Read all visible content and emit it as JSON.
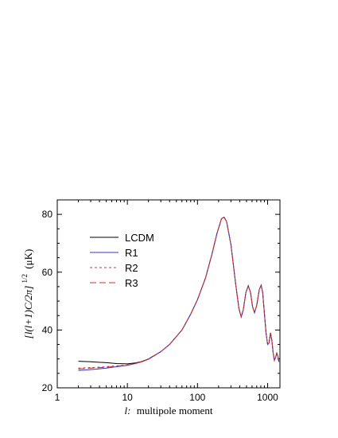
{
  "chart_data": {
    "type": "line",
    "xscale": "log",
    "xlim": [
      1,
      1500
    ],
    "ylim": [
      20,
      85
    ],
    "xticks": [
      1,
      10,
      100,
      1000
    ],
    "xtick_labels": [
      "1",
      "10",
      "100",
      "1000"
    ],
    "yticks": [
      20,
      40,
      60,
      80
    ],
    "ytick_labels": [
      "20",
      "40",
      "60",
      "80"
    ],
    "xlabel_italic": "l:",
    "xlabel_rest": "multipole moment",
    "ylabel_italic": "[l(l+1)C/2π]",
    "ylabel_exp": "1/2",
    "ylabel_unit": "(μK)",
    "legend_position": "upper-left",
    "grid": false,
    "series": [
      {
        "name": "LCDM",
        "color": "#000000",
        "dash": "solid",
        "points": [
          [
            2,
            29.2
          ],
          [
            3,
            29.0
          ],
          [
            5,
            28.7
          ],
          [
            7,
            28.4
          ],
          [
            10,
            28.3
          ],
          [
            13,
            28.6
          ],
          [
            16,
            29.1
          ],
          [
            20,
            30.0
          ],
          [
            30,
            32.5
          ],
          [
            40,
            35.0
          ],
          [
            60,
            40.0
          ],
          [
            80,
            45.5
          ],
          [
            100,
            50.5
          ],
          [
            130,
            58.0
          ],
          [
            160,
            66.0
          ],
          [
            190,
            73.5
          ],
          [
            220,
            78.5
          ],
          [
            240,
            79.0
          ],
          [
            260,
            77.5
          ],
          [
            300,
            69.5
          ],
          [
            350,
            56.0
          ],
          [
            390,
            47.5
          ],
          [
            420,
            44.5
          ],
          [
            450,
            47.0
          ],
          [
            490,
            53.0
          ],
          [
            530,
            55.3
          ],
          [
            570,
            53.0
          ],
          [
            610,
            48.0
          ],
          [
            650,
            46.0
          ],
          [
            700,
            48.5
          ],
          [
            760,
            54.0
          ],
          [
            810,
            55.5
          ],
          [
            850,
            53.0
          ],
          [
            900,
            46.0
          ],
          [
            950,
            39.0
          ],
          [
            1000,
            35.0
          ],
          [
            1050,
            35.5
          ],
          [
            1100,
            39.0
          ],
          [
            1150,
            36.5
          ],
          [
            1200,
            32.0
          ],
          [
            1250,
            29.5
          ],
          [
            1300,
            30.5
          ],
          [
            1350,
            32.0
          ],
          [
            1400,
            31.0
          ],
          [
            1450,
            29.0
          ]
        ]
      },
      {
        "name": "R1",
        "color": "#3333cc",
        "dash": "solid",
        "points": [
          [
            2,
            26.0
          ],
          [
            3,
            26.3
          ],
          [
            5,
            26.8
          ],
          [
            7,
            27.3
          ],
          [
            10,
            27.8
          ],
          [
            13,
            28.4
          ],
          [
            16,
            29.0
          ],
          [
            20,
            29.9
          ],
          [
            30,
            32.5
          ],
          [
            40,
            35.0
          ],
          [
            60,
            40.0
          ],
          [
            80,
            45.5
          ],
          [
            100,
            50.5
          ],
          [
            130,
            58.0
          ],
          [
            160,
            66.0
          ],
          [
            190,
            73.5
          ],
          [
            220,
            78.5
          ],
          [
            240,
            79.0
          ],
          [
            260,
            77.5
          ],
          [
            300,
            69.5
          ],
          [
            350,
            56.0
          ],
          [
            390,
            47.5
          ],
          [
            420,
            44.5
          ],
          [
            450,
            47.0
          ],
          [
            490,
            53.0
          ],
          [
            530,
            55.3
          ],
          [
            570,
            53.0
          ],
          [
            610,
            48.0
          ],
          [
            650,
            46.0
          ],
          [
            700,
            48.5
          ],
          [
            760,
            54.0
          ],
          [
            810,
            55.5
          ],
          [
            850,
            53.0
          ],
          [
            900,
            46.0
          ],
          [
            950,
            39.0
          ],
          [
            1000,
            35.0
          ],
          [
            1050,
            35.5
          ],
          [
            1100,
            39.0
          ],
          [
            1150,
            36.5
          ],
          [
            1200,
            32.0
          ],
          [
            1250,
            29.5
          ],
          [
            1300,
            30.5
          ],
          [
            1350,
            32.0
          ],
          [
            1400,
            31.0
          ],
          [
            1450,
            29.0
          ]
        ]
      },
      {
        "name": "R2",
        "color": "#cc3333",
        "dash": "3,3",
        "points": [
          [
            2,
            26.8
          ],
          [
            3,
            27.0
          ],
          [
            5,
            27.3
          ],
          [
            7,
            27.6
          ],
          [
            10,
            27.9
          ],
          [
            13,
            28.4
          ],
          [
            16,
            29.0
          ],
          [
            20,
            29.9
          ],
          [
            30,
            32.5
          ],
          [
            40,
            35.0
          ],
          [
            60,
            40.0
          ],
          [
            80,
            45.5
          ],
          [
            100,
            50.5
          ],
          [
            130,
            58.0
          ],
          [
            160,
            66.0
          ],
          [
            190,
            73.5
          ],
          [
            220,
            78.5
          ],
          [
            240,
            79.0
          ],
          [
            260,
            77.5
          ],
          [
            300,
            69.5
          ],
          [
            350,
            56.0
          ],
          [
            390,
            47.5
          ],
          [
            420,
            44.5
          ],
          [
            450,
            47.0
          ],
          [
            490,
            53.0
          ],
          [
            530,
            55.3
          ],
          [
            570,
            53.0
          ],
          [
            610,
            48.0
          ],
          [
            650,
            46.0
          ],
          [
            700,
            48.5
          ],
          [
            760,
            54.0
          ],
          [
            810,
            55.5
          ],
          [
            850,
            53.0
          ],
          [
            900,
            46.0
          ],
          [
            950,
            39.0
          ],
          [
            1000,
            35.0
          ],
          [
            1050,
            35.5
          ],
          [
            1100,
            39.0
          ],
          [
            1150,
            36.5
          ],
          [
            1200,
            32.0
          ],
          [
            1250,
            29.5
          ],
          [
            1300,
            30.5
          ],
          [
            1350,
            32.0
          ],
          [
            1400,
            31.0
          ],
          [
            1450,
            29.0
          ]
        ]
      },
      {
        "name": "R3",
        "color": "#cc3333",
        "dash": "8,4",
        "points": [
          [
            2,
            26.5
          ],
          [
            3,
            26.8
          ],
          [
            5,
            27.1
          ],
          [
            7,
            27.5
          ],
          [
            10,
            27.9
          ],
          [
            13,
            28.4
          ],
          [
            16,
            29.0
          ],
          [
            20,
            29.9
          ],
          [
            30,
            32.5
          ],
          [
            40,
            35.0
          ],
          [
            60,
            40.0
          ],
          [
            80,
            45.5
          ],
          [
            100,
            50.5
          ],
          [
            130,
            58.0
          ],
          [
            160,
            66.0
          ],
          [
            190,
            73.5
          ],
          [
            220,
            78.5
          ],
          [
            240,
            79.0
          ],
          [
            260,
            77.5
          ],
          [
            300,
            69.5
          ],
          [
            350,
            56.0
          ],
          [
            390,
            47.5
          ],
          [
            420,
            44.5
          ],
          [
            450,
            47.0
          ],
          [
            490,
            53.0
          ],
          [
            530,
            55.3
          ],
          [
            570,
            53.0
          ],
          [
            610,
            48.0
          ],
          [
            650,
            46.0
          ],
          [
            700,
            48.5
          ],
          [
            760,
            54.0
          ],
          [
            810,
            55.5
          ],
          [
            850,
            53.0
          ],
          [
            900,
            46.0
          ],
          [
            950,
            39.0
          ],
          [
            1000,
            35.0
          ],
          [
            1050,
            35.5
          ],
          [
            1100,
            39.0
          ],
          [
            1150,
            36.5
          ],
          [
            1200,
            32.0
          ],
          [
            1250,
            29.5
          ],
          [
            1300,
            30.5
          ],
          [
            1350,
            32.0
          ],
          [
            1400,
            31.0
          ],
          [
            1450,
            29.0
          ]
        ]
      }
    ]
  }
}
